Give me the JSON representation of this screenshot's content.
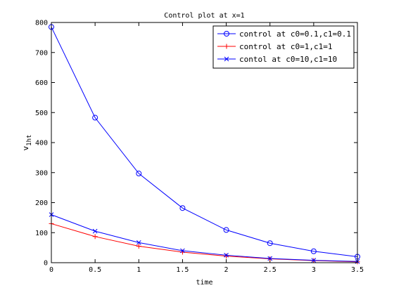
{
  "chart_data": {
    "type": "line",
    "title": "Control plot at x=1",
    "xlabel": "time",
    "ylabel": {
      "base": "v",
      "subscript": "1ht"
    },
    "xlim": [
      0,
      3.5
    ],
    "ylim": [
      0,
      800
    ],
    "xticks": [
      0,
      0.5,
      1,
      1.5,
      2,
      2.5,
      3,
      3.5
    ],
    "xtick_labels": [
      "0",
      "0.5",
      "1",
      "1.5",
      "2",
      "2.5",
      "3",
      "3.5"
    ],
    "yticks": [
      0,
      100,
      200,
      300,
      400,
      500,
      600,
      700,
      800
    ],
    "ytick_labels": [
      "0",
      "100",
      "200",
      "300",
      "400",
      "500",
      "600",
      "700",
      "800"
    ],
    "grid": false,
    "legend_position": "top-right",
    "x": [
      0,
      0.5,
      1,
      1.5,
      2,
      2.5,
      3,
      3.5
    ],
    "series": [
      {
        "name": "control at c0=0.1,c1=0.1",
        "color": "#0000ff",
        "marker": "circle",
        "values": [
          785,
          483,
          297,
          182,
          109,
          65,
          38,
          20
        ]
      },
      {
        "name": "control at c0=1,c1=1",
        "color": "#ff0000",
        "marker": "plus",
        "values": [
          130,
          87,
          55,
          35,
          22,
          13,
          7,
          3
        ]
      },
      {
        "name": "contol at c0=10,c1=10",
        "color": "#0000ff",
        "marker": "x",
        "values": [
          160,
          105,
          67,
          40,
          25,
          14,
          8,
          4
        ]
      }
    ]
  }
}
